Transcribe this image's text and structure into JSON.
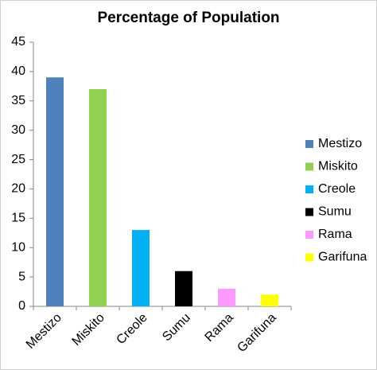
{
  "chart_data": {
    "type": "bar",
    "title": "Percentage of Population",
    "categories": [
      "Mestizo",
      "Miskito",
      "Creole",
      "Sumu",
      "Rama",
      "Garifuna"
    ],
    "values": [
      39,
      37,
      13,
      6,
      3,
      2
    ],
    "colors": [
      "#4f81bd",
      "#92d050",
      "#00b0f0",
      "#000000",
      "#ff99ff",
      "#ffff00"
    ],
    "ylim": [
      0,
      45
    ],
    "yticks": [
      0,
      5,
      10,
      15,
      20,
      25,
      30,
      35,
      40,
      45
    ],
    "grid": false,
    "legend": "right"
  }
}
